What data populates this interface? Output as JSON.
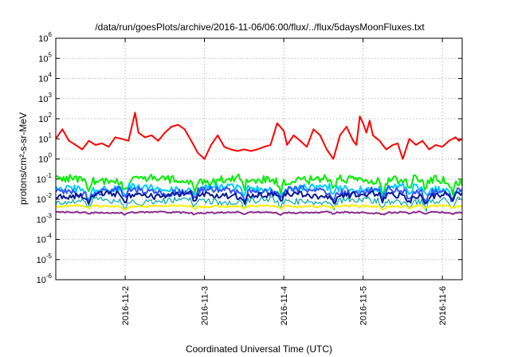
{
  "chart_data": {
    "type": "line",
    "title": "/data/run/goesPlots/archive/2016-11-06/06:00/flux/../flux/5daysMoonFluxes.txt",
    "xlabel": "Coordinated Universal Time (UTC)",
    "ylabel": "protons/cm²-s-sr-MeV",
    "yscale": "log",
    "ylim": [
      1e-06,
      1000000.0
    ],
    "y_tick_exponents": [
      -6,
      -5,
      -4,
      -3,
      -2,
      -1,
      0,
      1,
      2,
      3,
      4,
      5,
      6
    ],
    "xlim": [
      "2016-11-01T03:00",
      "2016-11-06T06:00"
    ],
    "x_ticks": [
      {
        "date": "2016-11-02T00:00",
        "label": "2016-11-2"
      },
      {
        "date": "2016-11-03T00:00",
        "label": "2016-11-3"
      },
      {
        "date": "2016-11-04T00:00",
        "label": "2016-11-4"
      },
      {
        "date": "2016-11-05T00:00",
        "label": "2016-11-5"
      },
      {
        "date": "2016-11-06T00:00",
        "label": "2016-11-6"
      }
    ],
    "grid": true,
    "series": [
      {
        "color": "#ff0000",
        "width": 2,
        "points": [
          [
            "2016-11-01T03:00",
            10
          ],
          [
            "2016-11-01T05:00",
            30
          ],
          [
            "2016-11-01T07:00",
            8
          ],
          [
            "2016-11-01T09:00",
            5
          ],
          [
            "2016-11-01T11:00",
            3
          ],
          [
            "2016-11-01T13:00",
            8
          ],
          [
            "2016-11-01T15:00",
            5
          ],
          [
            "2016-11-01T17:00",
            6
          ],
          [
            "2016-11-01T19:00",
            4
          ],
          [
            "2016-11-01T21:00",
            12
          ],
          [
            "2016-11-01T23:00",
            10
          ],
          [
            "2016-11-02T01:00",
            8
          ],
          [
            "2016-11-02T03:00",
            200
          ],
          [
            "2016-11-02T04:00",
            20
          ],
          [
            "2016-11-02T06:00",
            12
          ],
          [
            "2016-11-02T08:00",
            15
          ],
          [
            "2016-11-02T10:00",
            8
          ],
          [
            "2016-11-02T12:00",
            20
          ],
          [
            "2016-11-02T14:00",
            40
          ],
          [
            "2016-11-02T16:00",
            50
          ],
          [
            "2016-11-02T18:00",
            30
          ],
          [
            "2016-11-02T20:00",
            8
          ],
          [
            "2016-11-02T22:00",
            2
          ],
          [
            "2016-11-03T00:00",
            1
          ],
          [
            "2016-11-03T02:00",
            5
          ],
          [
            "2016-11-03T04:00",
            15
          ],
          [
            "2016-11-03T06:00",
            4
          ],
          [
            "2016-11-03T08:00",
            3
          ],
          [
            "2016-11-03T10:00",
            2.5
          ],
          [
            "2016-11-03T12:00",
            3
          ],
          [
            "2016-11-03T14:00",
            2.5
          ],
          [
            "2016-11-03T16:00",
            3
          ],
          [
            "2016-11-03T18:00",
            4
          ],
          [
            "2016-11-03T20:00",
            5
          ],
          [
            "2016-11-03T22:00",
            60
          ],
          [
            "2016-11-04T00:00",
            25
          ],
          [
            "2016-11-04T01:00",
            5
          ],
          [
            "2016-11-04T03:00",
            15
          ],
          [
            "2016-11-04T05:00",
            8
          ],
          [
            "2016-11-04T07:00",
            4
          ],
          [
            "2016-11-04T09:00",
            30
          ],
          [
            "2016-11-04T11:00",
            15
          ],
          [
            "2016-11-04T13:00",
            3
          ],
          [
            "2016-11-04T15:00",
            1
          ],
          [
            "2016-11-04T17:00",
            15
          ],
          [
            "2016-11-04T19:00",
            40
          ],
          [
            "2016-11-04T21:00",
            8
          ],
          [
            "2016-11-04T22:00",
            5
          ],
          [
            "2016-11-04T23:00",
            130
          ],
          [
            "2016-11-05T00:00",
            60
          ],
          [
            "2016-11-05T01:00",
            20
          ],
          [
            "2016-11-05T02:00",
            80
          ],
          [
            "2016-11-05T03:00",
            15
          ],
          [
            "2016-11-05T05:00",
            8
          ],
          [
            "2016-11-05T07:00",
            3
          ],
          [
            "2016-11-05T09:00",
            5
          ],
          [
            "2016-11-05T10:30",
            6
          ],
          [
            "2016-11-05T12:00",
            1
          ],
          [
            "2016-11-05T14:00",
            10
          ],
          [
            "2016-11-05T16:00",
            5
          ],
          [
            "2016-11-05T18:00",
            8
          ],
          [
            "2016-11-05T20:00",
            3
          ],
          [
            "2016-11-05T22:00",
            5
          ],
          [
            "2016-11-06T00:00",
            4
          ],
          [
            "2016-11-06T02:00",
            8
          ],
          [
            "2016-11-06T04:00",
            12
          ],
          [
            "2016-11-06T05:00",
            8
          ],
          [
            "2016-11-06T06:00",
            10
          ]
        ]
      },
      {
        "color": "#00ee00",
        "width": 2,
        "base": 0.09,
        "amp": 0.35
      },
      {
        "color": "#00ccff",
        "width": 2,
        "base": 0.035,
        "amp": 0.3
      },
      {
        "color": "#3355ff",
        "width": 2,
        "base": 0.025,
        "amp": 0.3
      },
      {
        "color": "#0a1a90",
        "width": 2,
        "base": 0.016,
        "amp": 0.25
      },
      {
        "color": "#00aaaa",
        "width": 1.2,
        "base": 0.008,
        "amp": 0.25
      },
      {
        "color": "#ffee00",
        "width": 2,
        "base": 0.0045,
        "amp": 0.08
      },
      {
        "color": "#8b2a8b",
        "width": 2,
        "base": 0.0022,
        "amp": 0.06
      }
    ]
  }
}
